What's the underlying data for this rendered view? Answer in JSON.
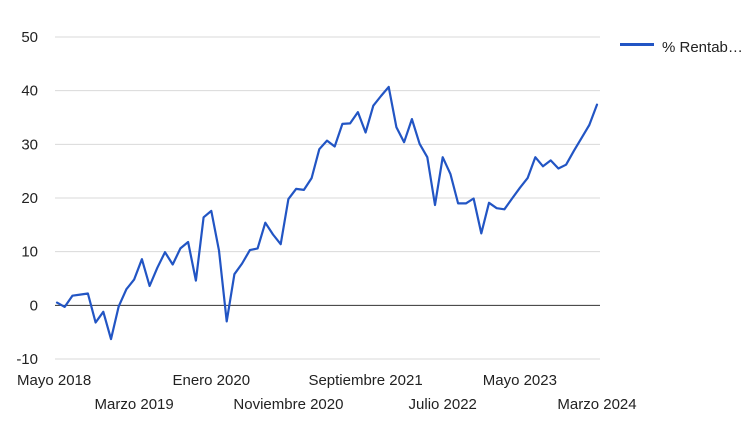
{
  "chart_data": {
    "type": "line",
    "title": "",
    "xlabel": "",
    "ylabel": "",
    "ylim": [
      -10,
      50
    ],
    "yticks": [
      -10,
      0,
      10,
      20,
      30,
      40,
      50
    ],
    "xtick_labels": [
      "Mayo 2018",
      "Marzo 2019",
      "Enero 2020",
      "Noviembre 2020",
      "Septiembre 2021",
      "Julio 2022",
      "Mayo 2023",
      "Marzo 2024"
    ],
    "xtick_indices": [
      0,
      10,
      20,
      30,
      40,
      50,
      60,
      70
    ],
    "grid": true,
    "legend_position": "right",
    "series": [
      {
        "name": "% Rentabilidad",
        "display_name": "% Rentabili…",
        "color": "#2255c4",
        "values": [
          0.5,
          -0.3,
          1.8,
          2.0,
          2.2,
          -3.2,
          -1.2,
          -6.3,
          -0.2,
          3.0,
          4.8,
          8.6,
          3.6,
          7.0,
          9.9,
          7.6,
          10.6,
          11.8,
          4.6,
          16.4,
          17.6,
          10.2,
          -3.0,
          5.8,
          7.8,
          10.3,
          10.6,
          15.4,
          13.2,
          11.4,
          19.8,
          21.7,
          21.5,
          23.7,
          29.1,
          30.7,
          29.6,
          33.8,
          33.9,
          36.0,
          32.2,
          37.2,
          39.0,
          40.7,
          33.2,
          30.4,
          34.7,
          30.1,
          27.6,
          18.7,
          27.6,
          24.5,
          19.0,
          19.0,
          19.9,
          13.4,
          19.1,
          18.1,
          17.9,
          19.9,
          21.9,
          23.7,
          27.6,
          25.9,
          27.0,
          25.5,
          26.2,
          28.8,
          31.2,
          33.6,
          37.4
        ]
      }
    ]
  }
}
